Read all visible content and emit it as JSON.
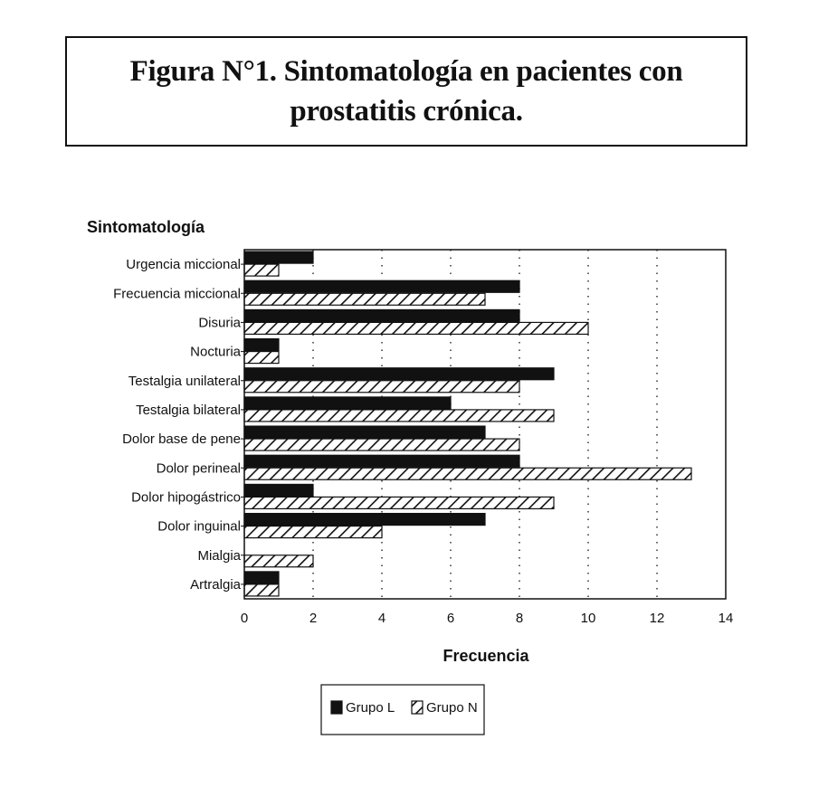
{
  "title": "Figura N°1. Sintomatología en pacientes con prostatitis crónica.",
  "chart_data": {
    "type": "bar",
    "orientation": "horizontal",
    "ylabel": "Sintomatología",
    "xlabel": "Frecuencia",
    "xlim": [
      0,
      14
    ],
    "xticks": [
      "0",
      "2",
      "4",
      "6",
      "8",
      "10",
      "12",
      "14"
    ],
    "grid": "vertical dotted",
    "legend_position": "bottom",
    "categories": [
      "Urgencia miccional",
      "Frecuencia miccional",
      "Disuria",
      "Nocturia",
      "Testalgia unilateral",
      "Testalgia bilateral",
      "Dolor base de pene",
      "Dolor perineal",
      "Dolor hipogástrico",
      "Dolor inguinal",
      "Mialgia",
      "Artralgia"
    ],
    "series": [
      {
        "name": "Grupo L",
        "pattern": "solid",
        "color": "#111111",
        "values": [
          2,
          8,
          8,
          1,
          9,
          6,
          7,
          8,
          2,
          7,
          0,
          1
        ]
      },
      {
        "name": "Grupo N",
        "pattern": "hatched",
        "color": "#111111",
        "values": [
          1,
          7,
          10,
          1,
          8,
          9,
          8,
          13,
          9,
          4,
          2,
          1
        ]
      }
    ]
  }
}
